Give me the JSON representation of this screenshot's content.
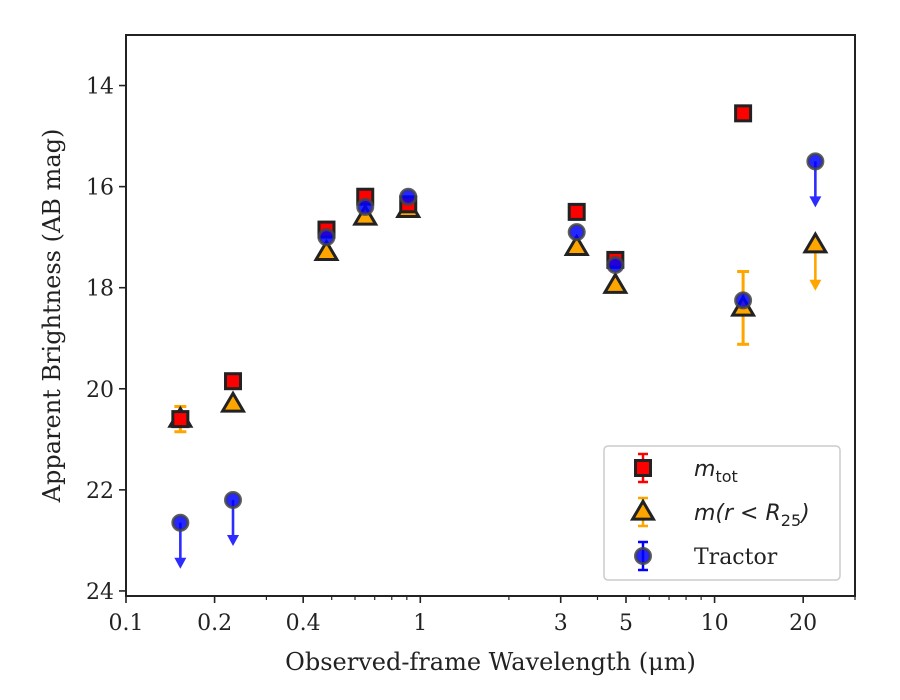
{
  "chart_data": {
    "type": "scatter",
    "xscale": "log",
    "xlabel": "Observed-frame Wavelength (μm)",
    "ylabel": "Apparent Brightness (AB mag)",
    "xlim": [
      0.1,
      30
    ],
    "ylim": [
      24.1,
      13
    ],
    "y_inverted": true,
    "xticks": [
      {
        "value": 0.1,
        "label": "0.1"
      },
      {
        "value": 0.2,
        "label": "0.2"
      },
      {
        "value": 0.4,
        "label": "0.4"
      },
      {
        "value": 1,
        "label": "1"
      },
      {
        "value": 3,
        "label": "3"
      },
      {
        "value": 5,
        "label": "5"
      },
      {
        "value": 10,
        "label": "10"
      },
      {
        "value": 20,
        "label": "20"
      }
    ],
    "xminor": [
      0.3,
      0.5,
      0.6,
      0.7,
      0.8,
      0.9,
      2,
      4,
      6,
      7,
      8,
      9,
      30
    ],
    "yticks": [
      {
        "value": 14,
        "label": "14"
      },
      {
        "value": 16,
        "label": "16"
      },
      {
        "value": 18,
        "label": "18"
      },
      {
        "value": 20,
        "label": "20"
      },
      {
        "value": 22,
        "label": "22"
      },
      {
        "value": 24,
        "label": "24"
      }
    ],
    "grid": false,
    "legend_position": "lower-right",
    "legend": [
      {
        "series": "mtot",
        "label_main": "m",
        "label_sub": "tot"
      },
      {
        "series": "mr25",
        "label_main": "m(r < R",
        "label_sub": "25",
        "label_end": ")"
      },
      {
        "series": "tractor",
        "label_main": "Tractor"
      }
    ],
    "series": [
      {
        "id": "mtot",
        "marker": "square",
        "color": "#ff0000",
        "edge": "#222222",
        "points": [
          {
            "x": 0.153,
            "y": 20.6
          },
          {
            "x": 0.231,
            "y": 19.85
          },
          {
            "x": 0.48,
            "y": 16.85
          },
          {
            "x": 0.65,
            "y": 16.2
          },
          {
            "x": 0.91,
            "y": 16.35
          },
          {
            "x": 3.4,
            "y": 16.5
          },
          {
            "x": 4.6,
            "y": 17.45
          },
          {
            "x": 12.5,
            "y": 14.55
          }
        ]
      },
      {
        "id": "mr25",
        "marker": "triangle",
        "color": "#ffa500",
        "edge": "#222222",
        "points": [
          {
            "x": 0.153,
            "y": 20.6,
            "yerr": 0.25
          },
          {
            "x": 0.231,
            "y": 20.3
          },
          {
            "x": 0.48,
            "y": 17.3
          },
          {
            "x": 0.65,
            "y": 16.6
          },
          {
            "x": 0.91,
            "y": 16.45
          },
          {
            "x": 3.4,
            "y": 17.2
          },
          {
            "x": 4.6,
            "y": 17.95
          },
          {
            "x": 12.5,
            "y": 18.4,
            "yerr": 0.72
          },
          {
            "x": 22,
            "y": 17.15,
            "upper_limit": true
          }
        ]
      },
      {
        "id": "tractor",
        "marker": "circle",
        "color": "#0000ff",
        "edge": "#444444",
        "points": [
          {
            "x": 0.153,
            "y": 22.65,
            "upper_limit": true
          },
          {
            "x": 0.231,
            "y": 22.2,
            "upper_limit": true
          },
          {
            "x": 0.48,
            "y": 17.0
          },
          {
            "x": 0.65,
            "y": 16.4
          },
          {
            "x": 0.91,
            "y": 16.2
          },
          {
            "x": 3.4,
            "y": 16.9
          },
          {
            "x": 4.6,
            "y": 17.55
          },
          {
            "x": 12.5,
            "y": 18.25
          },
          {
            "x": 22,
            "y": 15.5,
            "upper_limit": true
          }
        ]
      }
    ]
  }
}
